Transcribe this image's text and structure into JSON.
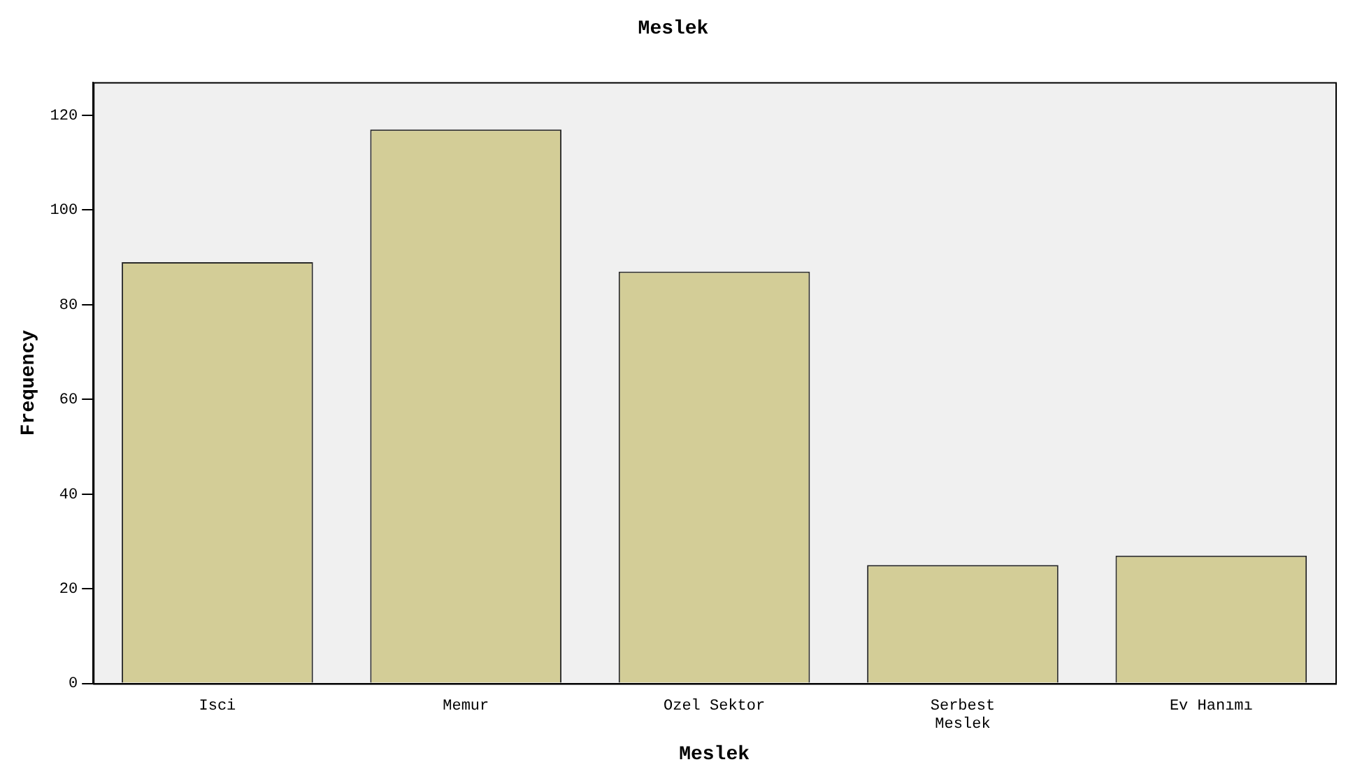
{
  "chart_data": {
    "type": "bar",
    "title": "Meslek",
    "xlabel": "Meslek",
    "ylabel": "Frequency",
    "categories": [
      "Isci",
      "Memur",
      "Ozel Sektor",
      "Serbest Meslek",
      "Ev Hanımı"
    ],
    "values": [
      89,
      117,
      87,
      25,
      27
    ],
    "color": "#d3cd97",
    "ylim": [
      0,
      127
    ],
    "yticks": [
      0,
      20,
      40,
      60,
      80,
      100,
      120
    ],
    "grid": false,
    "legend": false
  }
}
